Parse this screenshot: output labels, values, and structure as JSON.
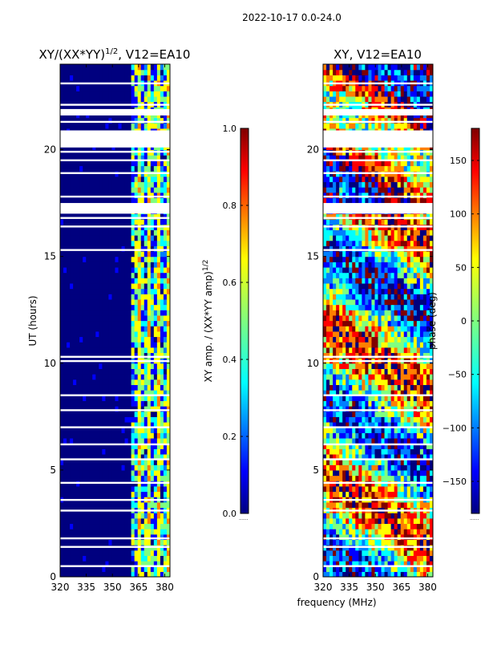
{
  "figure_title": "2022-10-17 0.0-24.0",
  "xlabel_shared": "frequency (MHz)",
  "colors": {
    "background_band": "#00008b",
    "gap": "#ffffff",
    "axis": "#000000",
    "jet": [
      "#00007f",
      "#0000ff",
      "#007fff",
      "#00ffff",
      "#7fff7f",
      "#ffff00",
      "#ff7f00",
      "#ff0000",
      "#7f0000"
    ]
  },
  "icons": {
    "colorbar_marker": "dotted-line-icon"
  },
  "chart_data": [
    {
      "type": "heatmap",
      "title_main": "XY/(XX*YY)",
      "title_sup": "1/2",
      "title_tail": ", V12=EA10",
      "xlabel": "",
      "ylabel": "UT (hours)",
      "xlim": [
        320,
        383
      ],
      "ylim": [
        0,
        24
      ],
      "xticks": [
        "320",
        "335",
        "350",
        "365",
        "380"
      ],
      "xtick_values": [
        320,
        335,
        350,
        365,
        380
      ],
      "yticks": [
        "0",
        "5",
        "10",
        "15",
        "20"
      ],
      "ytick_values": [
        0,
        5,
        10,
        15,
        20
      ],
      "flagged_hours": [
        0.5,
        1.4,
        1.8,
        3.1,
        3.6,
        4.4,
        5.5,
        6.2,
        7.0,
        7.8,
        8.5,
        10.1,
        10.3,
        15.3,
        16.4,
        16.8,
        17.3,
        17.8,
        18.9,
        19.5,
        19.9,
        20.3,
        20.7,
        21.3,
        22.1,
        23.1
      ],
      "flagged_spans": [
        [
          20.1,
          20.9
        ],
        [
          21.6,
          21.9
        ],
        [
          17.0,
          17.5
        ]
      ],
      "structured_band_mhz": [
        361,
        383
      ],
      "colorbar": {
        "label_main": "XY amp. / (XX*YY amp)",
        "label_sup": "1/2",
        "ticks": [
          "0.0",
          "0.2",
          "0.4",
          "0.6",
          "0.8",
          "1.0"
        ],
        "tick_values": [
          0.0,
          0.2,
          0.4,
          0.6,
          0.8,
          1.0
        ],
        "range": [
          0.0,
          1.0
        ]
      }
    },
    {
      "type": "heatmap",
      "title_main": "XY, V12=EA10",
      "xlabel": "frequency (MHz)",
      "ylabel": "",
      "xlim": [
        320,
        383
      ],
      "ylim": [
        0,
        24
      ],
      "xticks": [
        "320",
        "335",
        "350",
        "365",
        "380"
      ],
      "xtick_values": [
        320,
        335,
        350,
        365,
        380
      ],
      "yticks": [
        "0",
        "5",
        "10",
        "15",
        "20"
      ],
      "ytick_values": [
        0,
        5,
        10,
        15,
        20
      ],
      "flagged_hours": [
        0.5,
        1.4,
        1.8,
        3.1,
        3.6,
        4.4,
        5.5,
        6.2,
        7.0,
        7.8,
        8.5,
        10.1,
        10.3,
        15.3,
        16.4,
        16.8,
        17.3,
        17.8,
        18.9,
        19.5,
        19.9,
        20.3,
        20.7,
        21.3,
        22.1,
        23.1
      ],
      "flagged_spans": [
        [
          20.1,
          20.9
        ],
        [
          21.6,
          21.9
        ],
        [
          17.0,
          17.5
        ]
      ],
      "colorbar": {
        "label_main": "phase (deg)",
        "ticks": [
          "−150",
          "−100",
          "−50",
          "0",
          "50",
          "100",
          "150"
        ],
        "tick_values": [
          -150,
          -100,
          -50,
          0,
          50,
          100,
          150
        ],
        "range": [
          -180,
          180
        ]
      }
    }
  ]
}
